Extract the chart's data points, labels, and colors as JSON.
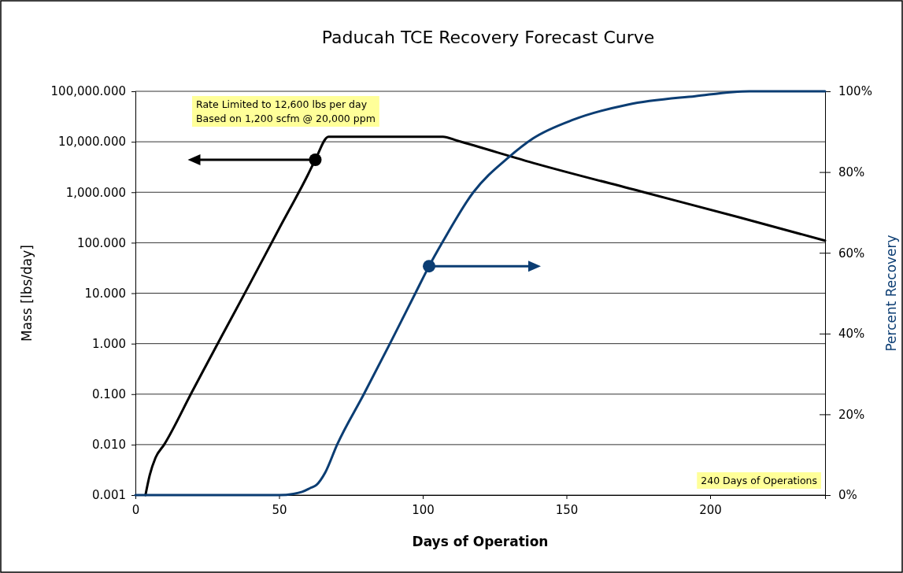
{
  "chart_data": {
    "type": "line",
    "title": "Paducah TCE Recovery Forecast Curve",
    "xlabel": "Days of Operation",
    "ylabel": "Mass [lbs/day]",
    "y2label": "Percent Recovery",
    "annotations": [
      "Rate Limited to 12,600 lbs per day\nBased on 1,200 scfm @ 20,000 ppm",
      "240 Days of Operations"
    ],
    "log": "y",
    "grid": "y",
    "marker": "none",
    "line_style": "solid",
    "xlim": [
      0,
      240
    ],
    "xticks": [
      0,
      50,
      100,
      150,
      200
    ],
    "ylim": [
      0.001,
      100000
    ],
    "yticks": [
      0.001,
      {
        "value": 0.01,
        "label": "0.010"
      },
      {
        "value": 0.1,
        "label": "0.100"
      },
      {
        "value": 1,
        "label": "1.000"
      },
      {
        "value": 10,
        "label": "10.000"
      },
      {
        "value": 100,
        "label": "100.000"
      },
      {
        "value": 1000,
        "label": "1,000.000"
      },
      {
        "value": 10000,
        "label": "10,000.000"
      },
      {
        "value": 100000,
        "label": "100,000.000"
      }
    ],
    "y2lim": [
      0,
      100
    ],
    "y2ticks": [
      {
        "value": 0,
        "label": "0%"
      },
      {
        "value": 20,
        "label": "20%"
      },
      {
        "value": 40,
        "label": "40%"
      },
      {
        "value": 60,
        "label": "60%"
      },
      {
        "value": 80,
        "label": "80%"
      },
      {
        "value": 100,
        "label": "100%"
      }
    ],
    "series": [
      {
        "color": "#000000",
        "x": [
          3.5,
          5,
          7,
          10,
          20,
          30,
          40,
          50,
          60,
          62.6,
          67.2,
          107,
          112,
          140,
          177,
          210,
          240
        ],
        "values": [
          0.001,
          0.0025,
          0.0055,
          0.01,
          0.12,
          1.4,
          16,
          190,
          2200,
          4400,
          12600,
          12600,
          10500,
          3600,
          1000,
          320,
          110
        ]
      },
      {
        "color": "#0b3d73",
        "axis": "y2",
        "x": [
          0,
          50,
          55,
          58,
          61,
          63,
          66,
          70.2,
          79.5,
          88.5,
          97.5,
          102.2,
          107,
          117.5,
          129.8,
          138.3,
          152.5,
          171.3,
          194.8,
          213.7,
          240
        ],
        "values": [
          0,
          0,
          0.3,
          0.8,
          1.8,
          2.5,
          5.5,
          12.5,
          25,
          37.4,
          50.1,
          56.7,
          62.8,
          74.9,
          83.6,
          88.3,
          93,
          96.7,
          98.8,
          100,
          100
        ]
      }
    ]
  }
}
